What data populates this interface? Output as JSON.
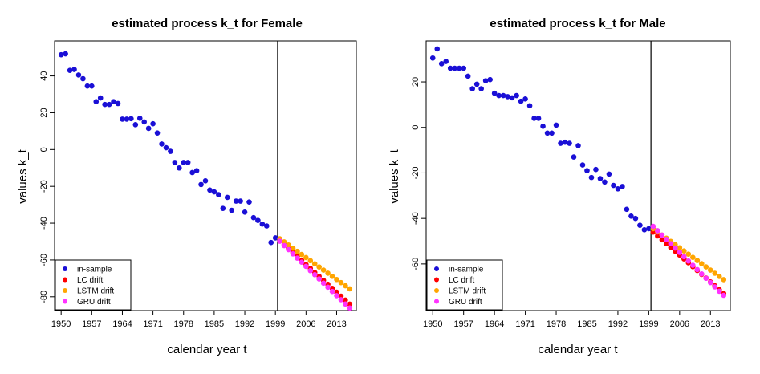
{
  "chart_data": [
    {
      "type": "scatter",
      "title": "estimated process k_t for Female",
      "xlabel": "calendar year t",
      "ylabel": "values k_t",
      "xlim": [
        1948.5,
        2017.5
      ],
      "ylim": [
        -87.5,
        59
      ],
      "xticks": [
        1950,
        1957,
        1964,
        1971,
        1978,
        1985,
        1992,
        1999,
        2006,
        2013
      ],
      "yticks": [
        -80,
        -60,
        -40,
        -20,
        0,
        20,
        40
      ],
      "vline": 1999.5,
      "legend_position": "bottom-left",
      "series": [
        {
          "name": "in-sample",
          "color": "#1a0fd6",
          "x": [
            1950,
            1951,
            1952,
            1953,
            1954,
            1955,
            1956,
            1957,
            1958,
            1959,
            1960,
            1961,
            1962,
            1963,
            1964,
            1965,
            1966,
            1967,
            1968,
            1969,
            1970,
            1971,
            1972,
            1973,
            1974,
            1975,
            1976,
            1977,
            1978,
            1979,
            1980,
            1981,
            1982,
            1983,
            1984,
            1985,
            1986,
            1987,
            1988,
            1989,
            1990,
            1991,
            1992,
            1993,
            1994,
            1995,
            1996,
            1997,
            1998,
            1999
          ],
          "y": [
            51.5,
            52,
            43,
            43.5,
            40.5,
            38.5,
            34.5,
            34.5,
            26,
            28,
            24.5,
            24.5,
            26,
            25,
            16.5,
            16.5,
            16.8,
            13.5,
            17,
            15,
            11.5,
            14,
            9,
            3,
            1,
            -1,
            -7,
            -10,
            -7,
            -7,
            -12.5,
            -11.5,
            -19,
            -17,
            -22,
            -23,
            -24.5,
            -32,
            -26,
            -33,
            -28,
            -28,
            -34,
            -28.5,
            -37,
            -38.5,
            -40.5,
            -41.5,
            -50.5,
            -48
          ]
        },
        {
          "name": "LC drift",
          "color": "#ff0000",
          "x": [
            2000,
            2001,
            2002,
            2003,
            2004,
            2005,
            2006,
            2007,
            2008,
            2009,
            2010,
            2011,
            2012,
            2013,
            2014,
            2015,
            2016
          ],
          "y": [
            -49.5,
            -51.7,
            -53.8,
            -56,
            -58.1,
            -60.3,
            -62.5,
            -64.6,
            -66.8,
            -68.9,
            -71.1,
            -73.2,
            -75.4,
            -77.5,
            -79.7,
            -81.8,
            -84
          ]
        },
        {
          "name": "LSTM drift",
          "color": "#ffa500",
          "x": [
            2000,
            2001,
            2002,
            2003,
            2004,
            2005,
            2006,
            2007,
            2008,
            2009,
            2010,
            2011,
            2012,
            2013,
            2014,
            2015,
            2016
          ],
          "y": [
            -48.5,
            -50.2,
            -51.9,
            -53.6,
            -55.3,
            -57,
            -58.7,
            -60.4,
            -62.1,
            -63.8,
            -65.5,
            -67.2,
            -68.9,
            -70.6,
            -72.3,
            -74,
            -75.7
          ]
        },
        {
          "name": "GRU drift",
          "color": "#ff33ff",
          "x": [
            2000,
            2001,
            2002,
            2003,
            2004,
            2005,
            2006,
            2007,
            2008,
            2009,
            2010,
            2011,
            2012,
            2013,
            2014,
            2015,
            2016
          ],
          "y": [
            -49.8,
            -52.2,
            -54.4,
            -56.7,
            -59,
            -61.2,
            -63.5,
            -65.8,
            -68,
            -70.3,
            -72.6,
            -74.8,
            -77.1,
            -79.4,
            -81.6,
            -83.9,
            -86.1
          ]
        }
      ]
    },
    {
      "type": "scatter",
      "title": "estimated process k_t for Male",
      "xlabel": "calendar year t",
      "ylabel": "values k_t",
      "xlim": [
        1948.5,
        2017.5
      ],
      "ylim": [
        -80.5,
        38
      ],
      "xticks": [
        1950,
        1957,
        1964,
        1971,
        1978,
        1985,
        1992,
        1999,
        2006,
        2013
      ],
      "yticks": [
        -60,
        -40,
        -20,
        0,
        20
      ],
      "vline": 1999.5,
      "legend_position": "bottom-left",
      "series": [
        {
          "name": "in-sample",
          "color": "#1a0fd6",
          "x": [
            1950,
            1951,
            1952,
            1953,
            1954,
            1955,
            1956,
            1957,
            1958,
            1959,
            1960,
            1961,
            1962,
            1963,
            1964,
            1965,
            1966,
            1967,
            1968,
            1969,
            1970,
            1971,
            1972,
            1973,
            1974,
            1975,
            1976,
            1977,
            1978,
            1979,
            1980,
            1981,
            1982,
            1983,
            1984,
            1985,
            1986,
            1987,
            1988,
            1989,
            1990,
            1991,
            1992,
            1993,
            1994,
            1995,
            1996,
            1997,
            1998,
            1999
          ],
          "y": [
            30.5,
            34.5,
            28,
            29,
            26,
            26,
            26,
            26,
            22.5,
            17,
            19,
            17,
            20.5,
            21,
            15,
            14,
            14,
            13.5,
            13,
            14,
            11.5,
            12.5,
            9.5,
            4,
            4,
            0.5,
            -2.5,
            -2.5,
            1,
            -7,
            -6.5,
            -7,
            -13,
            -8,
            -16.5,
            -19,
            -22,
            -18.5,
            -22.5,
            -24,
            -20.5,
            -25.5,
            -27,
            -26,
            -36,
            -39,
            -40,
            -43,
            -45,
            -44.5
          ]
        },
        {
          "name": "LC drift",
          "color": "#ff0000",
          "x": [
            2000,
            2001,
            2002,
            2003,
            2004,
            2005,
            2006,
            2007,
            2008,
            2009,
            2010,
            2011,
            2012,
            2013,
            2014,
            2015,
            2016
          ],
          "y": [
            -46,
            -47.7,
            -49.4,
            -51.1,
            -52.8,
            -54.4,
            -56.1,
            -57.8,
            -59.5,
            -61.2,
            -62.9,
            -64.6,
            -66.2,
            -67.9,
            -69.6,
            -71.3,
            -73
          ]
        },
        {
          "name": "LSTM drift",
          "color": "#ffa500",
          "x": [
            2000,
            2001,
            2002,
            2003,
            2004,
            2005,
            2006,
            2007,
            2008,
            2009,
            2010,
            2011,
            2012,
            2013,
            2014,
            2015,
            2016
          ],
          "y": [
            -44.5,
            -45.9,
            -47.3,
            -48.7,
            -50.1,
            -51.5,
            -52.9,
            -54.3,
            -55.7,
            -57.1,
            -58.5,
            -59.9,
            -61.3,
            -62.7,
            -64.1,
            -65.5,
            -66.9
          ]
        },
        {
          "name": "GRU drift",
          "color": "#ff33ff",
          "x": [
            2000,
            2001,
            2002,
            2003,
            2004,
            2005,
            2006,
            2007,
            2008,
            2009,
            2010,
            2011,
            2012,
            2013,
            2014,
            2015,
            2016
          ],
          "y": [
            -43.5,
            -45.4,
            -47.3,
            -49.2,
            -51.1,
            -53,
            -54.9,
            -56.8,
            -58.7,
            -60.6,
            -62.5,
            -64.4,
            -66.3,
            -68.2,
            -70.1,
            -72,
            -73.8
          ]
        }
      ]
    }
  ]
}
